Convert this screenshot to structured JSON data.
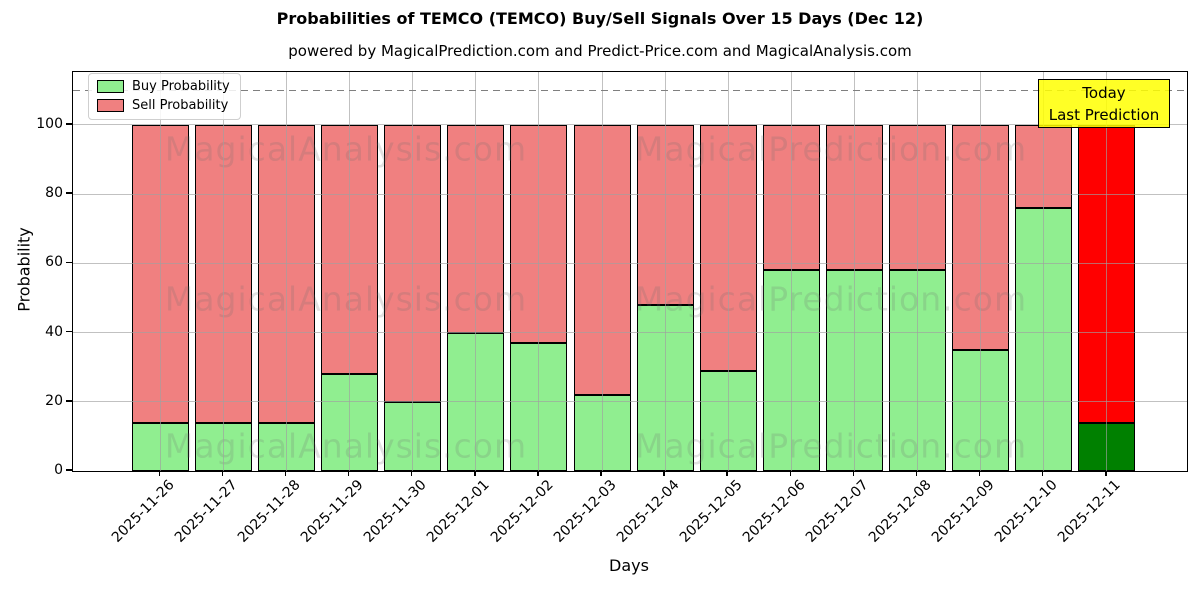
{
  "title": "Probabilities of TEMCO (TEMCO) Buy/Sell Signals Over 15 Days (Dec 12)",
  "subtitle": "powered by MagicalPrediction.com and Predict-Price.com and MagicalAnalysis.com",
  "legend": {
    "items": [
      {
        "label": "Buy Probability",
        "color": "#90ee90"
      },
      {
        "label": "Sell Probability",
        "color": "#f08080"
      }
    ]
  },
  "annotation": {
    "line1": "Today",
    "line2": "Last Prediction",
    "bg_color": "#ffff00",
    "border_color": "#000000"
  },
  "watermark": {
    "left_text": "MagicalAnalysis.com",
    "right_text": "MagicalPrediction.com"
  },
  "chart_data": {
    "type": "bar",
    "stacked": true,
    "title": "Probabilities of TEMCO (TEMCO) Buy/Sell Signals Over 15 Days (Dec 12)",
    "xlabel": "Days",
    "ylabel": "Probability",
    "categories": [
      "2025-11-26",
      "2025-11-27",
      "2025-11-28",
      "2025-11-29",
      "2025-11-30",
      "2025-12-01",
      "2025-12-02",
      "2025-12-03",
      "2025-12-04",
      "2025-12-05",
      "2025-12-06",
      "2025-12-07",
      "2025-12-08",
      "2025-12-09",
      "2025-12-10",
      "2025-12-11"
    ],
    "series": [
      {
        "name": "Buy Probability",
        "color": "#90ee90",
        "today_color": "#008000",
        "values": [
          14,
          14,
          14,
          28,
          20,
          40,
          37,
          22,
          48,
          29,
          58,
          58,
          58,
          35,
          76,
          14
        ]
      },
      {
        "name": "Sell Probability",
        "color": "#f08080",
        "today_color": "#ff0000",
        "values": [
          86,
          86,
          86,
          72,
          80,
          60,
          63,
          78,
          52,
          71,
          42,
          42,
          42,
          65,
          24,
          86
        ]
      }
    ],
    "ylim": [
      0,
      115
    ],
    "yticks": [
      0,
      20,
      40,
      60,
      80,
      100
    ],
    "grid": true,
    "legend_position": "upper left",
    "dashed_line_y": 110,
    "today_index": 15,
    "bar_edge_color": "#000000"
  }
}
